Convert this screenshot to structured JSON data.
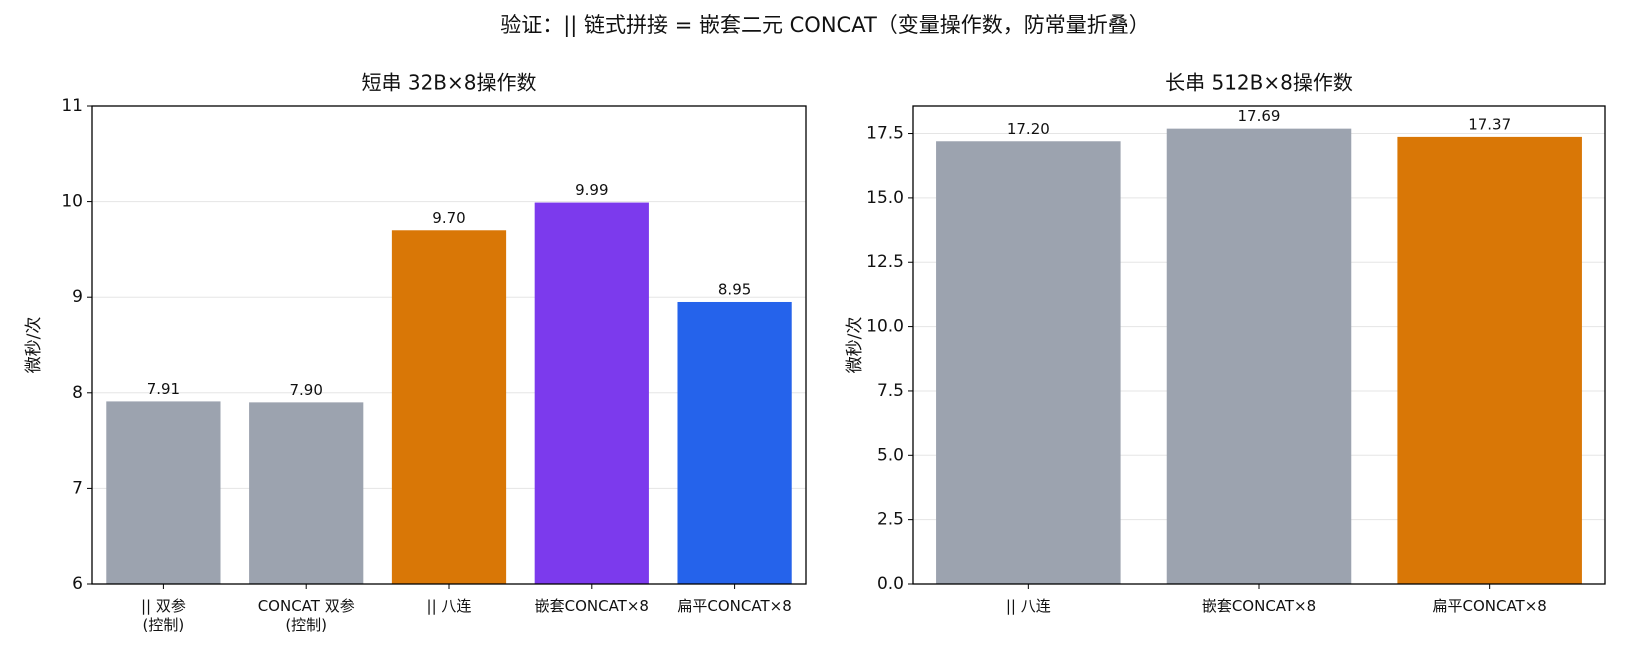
{
  "title": "验证：|| 链式拼接 = 嵌套二元 CONCAT（变量操作数，防常量折叠）",
  "chart_data": [
    {
      "type": "bar",
      "title": "短串 32B×8操作数",
      "y_label": "微秒/次",
      "categories": [
        "|| 双参\n(控制)",
        "CONCAT 双参\n(控制)",
        "|| 八连",
        "嵌套CONCAT×8",
        "扁平CONCAT×8"
      ],
      "values": [
        7.91,
        7.9,
        9.7,
        9.99,
        8.95
      ],
      "value_labels": [
        "7.91",
        "7.90",
        "9.70",
        "9.99",
        "8.95"
      ],
      "colors": [
        "#9ca3af",
        "#9ca3af",
        "#d97706",
        "#7c3aed",
        "#2563eb"
      ],
      "ylim": [
        6,
        11
      ],
      "yticks": [
        6,
        7,
        8,
        9,
        10,
        11
      ],
      "grid": true
    },
    {
      "type": "bar",
      "title": "长串 512B×8操作数",
      "y_label": "微秒/次",
      "categories": [
        "|| 八连",
        "嵌套CONCAT×8",
        "扁平CONCAT×8"
      ],
      "values": [
        17.2,
        17.69,
        17.37
      ],
      "value_labels": [
        "17.20",
        "17.69",
        "17.37"
      ],
      "colors": [
        "#9ca3af",
        "#9ca3af",
        "#d97706"
      ],
      "ylim": [
        0,
        18.57
      ],
      "yticks": [
        {
          "value": 0,
          "label": "0.0"
        },
        {
          "value": 2.5,
          "label": "2.5"
        },
        {
          "value": 5,
          "label": "5.0"
        },
        {
          "value": 7.5,
          "label": "7.5"
        },
        {
          "value": 10,
          "label": "10.0"
        },
        {
          "value": 12.5,
          "label": "12.5"
        },
        {
          "value": 15,
          "label": "15.0"
        },
        {
          "value": 17.5,
          "label": "17.5"
        }
      ],
      "grid": true
    }
  ]
}
